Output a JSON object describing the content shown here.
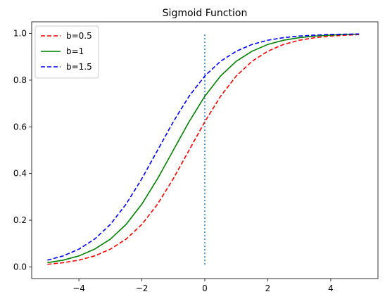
{
  "chart_data": {
    "type": "line",
    "title": "Sigmoid Function",
    "xlabel": "",
    "ylabel": "",
    "xlim": [
      -5.5,
      5.5
    ],
    "ylim": [
      -0.05,
      1.05
    ],
    "x_ticks": [
      -4,
      -2,
      0,
      2,
      4
    ],
    "x_tick_labels": [
      "−4",
      "−2",
      "0",
      "2",
      "4"
    ],
    "y_ticks": [
      0.0,
      0.2,
      0.4,
      0.6,
      0.8,
      1.0
    ],
    "y_tick_labels": [
      "0.0",
      "0.2",
      "0.4",
      "0.6",
      "0.8",
      "1.0"
    ],
    "grid": false,
    "legend_position": "top-left",
    "x": [
      -5,
      -4.5,
      -4,
      -3.5,
      -3,
      -2.5,
      -2,
      -1.5,
      -1,
      -0.5,
      0,
      0.5,
      1,
      1.5,
      2,
      2.5,
      3,
      3.5,
      4,
      4.5,
      4.9
    ],
    "series": [
      {
        "name": "b=0.5",
        "color": "#ff0000",
        "style": "dashed",
        "values": [
          0.011,
          0.018,
          0.029,
          0.047,
          0.076,
          0.119,
          0.182,
          0.269,
          0.378,
          0.5,
          0.622,
          0.731,
          0.818,
          0.881,
          0.924,
          0.953,
          0.971,
          0.982,
          0.989,
          0.993,
          0.995
        ]
      },
      {
        "name": "b=1",
        "color": "#008000",
        "style": "solid",
        "values": [
          0.018,
          0.029,
          0.047,
          0.076,
          0.119,
          0.182,
          0.269,
          0.378,
          0.5,
          0.622,
          0.731,
          0.818,
          0.881,
          0.924,
          0.953,
          0.971,
          0.982,
          0.989,
          0.993,
          0.996,
          0.997
        ]
      },
      {
        "name": "b=1.5",
        "color": "#0000ff",
        "style": "dashed",
        "values": [
          0.029,
          0.047,
          0.076,
          0.119,
          0.182,
          0.269,
          0.378,
          0.5,
          0.622,
          0.731,
          0.818,
          0.881,
          0.924,
          0.953,
          0.971,
          0.982,
          0.989,
          0.993,
          0.996,
          0.997,
          0.998
        ]
      }
    ],
    "annotations": [
      {
        "type": "vertical-line",
        "x": 0,
        "y_from": 0.01,
        "y_to": 1.0,
        "color": "#1f77b4",
        "style": "dotted"
      }
    ]
  }
}
